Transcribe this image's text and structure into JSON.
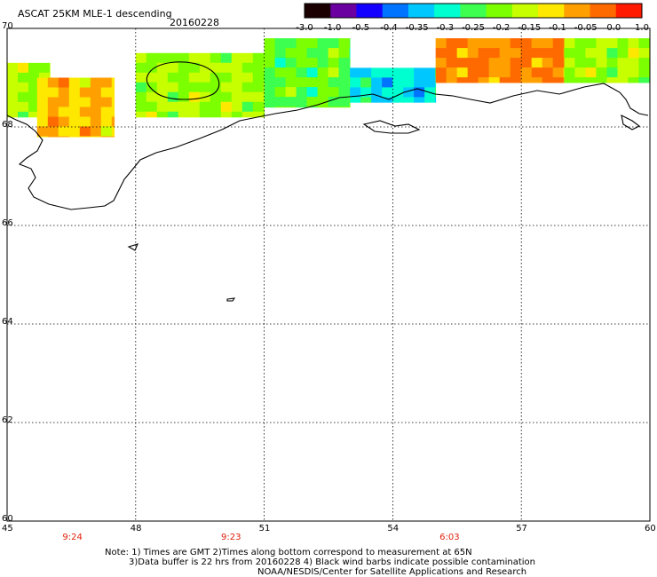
{
  "header": {
    "title": "ASCAT 25KM MLE-1 descending",
    "date": "20160228"
  },
  "colorbar": {
    "labels": [
      "-3.0",
      "-1.0",
      "-0.5",
      "-0.4",
      "-0.35",
      "-0.3",
      "-0.25",
      "-0.2",
      "-0.15",
      "-0.1",
      "-0.05",
      "0.0",
      "1.0"
    ],
    "colors": [
      "#1a0000",
      "#6a00a0",
      "#1400ff",
      "#0073ff",
      "#00c8ff",
      "#00ffd0",
      "#3cff50",
      "#7cff00",
      "#c8ff00",
      "#ffe800",
      "#ffa000",
      "#ff6a00",
      "#ff1a00"
    ]
  },
  "chart_data": {
    "type": "heatmap",
    "title": "ASCAT 25KM MLE-1 descending",
    "xlabel": "",
    "ylabel": "",
    "xlim": [
      45,
      60
    ],
    "ylim": [
      60,
      70
    ],
    "x_ticks": [
      "45",
      "48",
      "51",
      "54",
      "57",
      "60"
    ],
    "y_ticks": [
      "70",
      "68",
      "66",
      "64",
      "62",
      "60"
    ],
    "grid": true,
    "time_ticks": [
      {
        "x": 46.5,
        "label": "9:24"
      },
      {
        "x": 50.2,
        "label": "9:23"
      },
      {
        "x": 55.3,
        "label": "6:03"
      }
    ],
    "region_values": [
      {
        "region": "western coast 45-46",
        "lat": [
          68.2,
          69.3
        ],
        "value": -0.15
      },
      {
        "region": "western 45.7-47.5",
        "lat": [
          67.8,
          69.0
        ],
        "value": -0.05
      },
      {
        "region": "central-west 48-51",
        "lat": [
          68.2,
          69.5
        ],
        "value": -0.15
      },
      {
        "region": "central 51-53",
        "lat": [
          68.4,
          69.8
        ],
        "value": -0.2
      },
      {
        "region": "eastern 53-55",
        "lat": [
          68.5,
          69.2
        ],
        "value": -0.3
      },
      {
        "region": "eastern 55-58",
        "lat": [
          68.9,
          69.8
        ],
        "value": 0.0
      },
      {
        "region": "far east 58-60",
        "lat": [
          68.9,
          69.8
        ],
        "value": -0.15
      }
    ]
  },
  "notes": {
    "line1": "Note: 1) Times are GMT 2)Times along bottom correspond to measurement at 65N",
    "line2": "3)Data buffer is 22 hrs from 20160228 4) Black wind barbs indicate possible contamination",
    "line3": "NOAA/NESDIS/Center for Satellite Applications and Research"
  }
}
